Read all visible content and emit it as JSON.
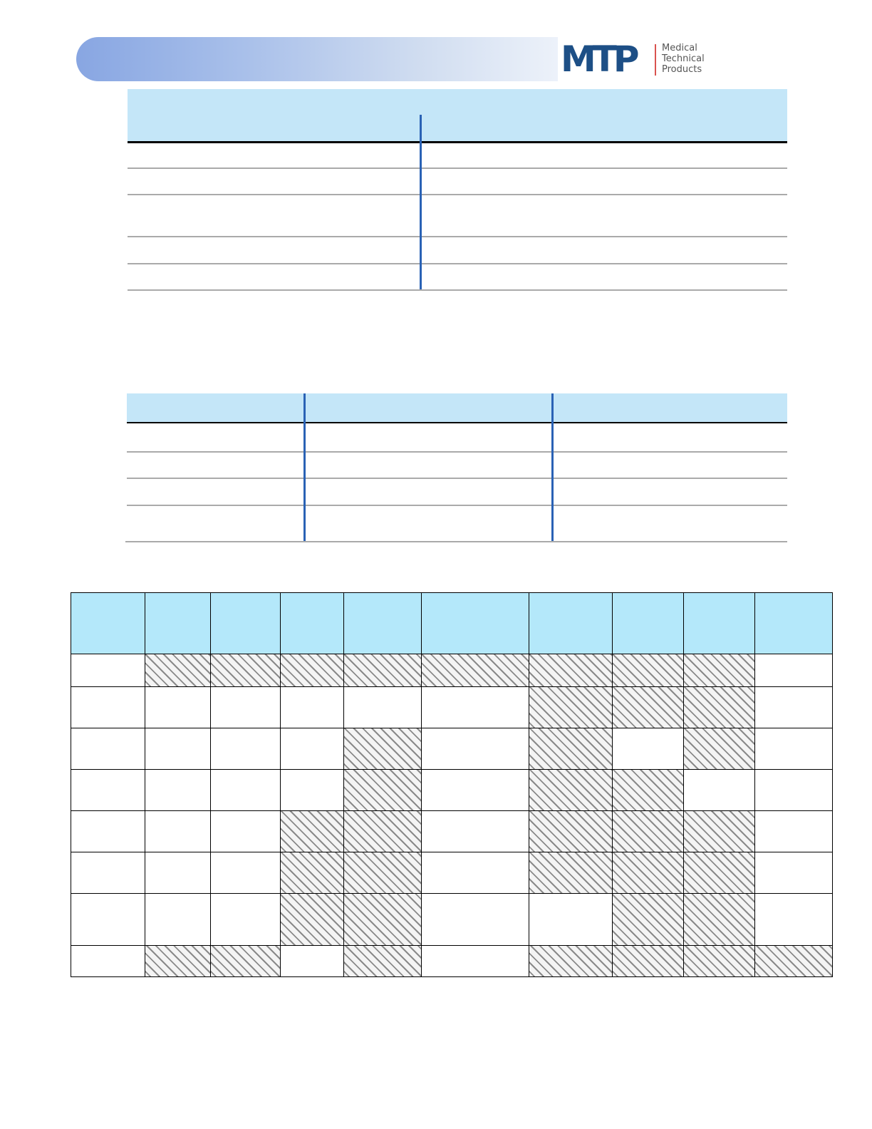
{
  "logo": {
    "mark": "MTP",
    "lines": [
      "Medical",
      "Technical",
      "Products"
    ],
    "colors": {
      "mark": "#1d4f86",
      "divider": "#d9534f"
    }
  },
  "colors": {
    "table_header": "#c4e6f8",
    "grid_header": "#b4e8fa",
    "divider": "#2a62b5"
  },
  "grid": {
    "hatched": [
      [
        false,
        true,
        true,
        true,
        true,
        true,
        true,
        true,
        true,
        false
      ],
      [
        false,
        false,
        false,
        false,
        false,
        false,
        true,
        true,
        true,
        false
      ],
      [
        false,
        false,
        false,
        false,
        true,
        false,
        true,
        false,
        true,
        false
      ],
      [
        false,
        false,
        false,
        false,
        true,
        false,
        true,
        true,
        false,
        false
      ],
      [
        false,
        false,
        false,
        true,
        true,
        false,
        true,
        true,
        true,
        false
      ],
      [
        false,
        false,
        false,
        true,
        true,
        false,
        true,
        true,
        true,
        false
      ],
      [
        false,
        false,
        false,
        true,
        true,
        false,
        false,
        true,
        true,
        false
      ],
      [
        false,
        true,
        true,
        false,
        true,
        false,
        true,
        true,
        true,
        true
      ]
    ]
  }
}
